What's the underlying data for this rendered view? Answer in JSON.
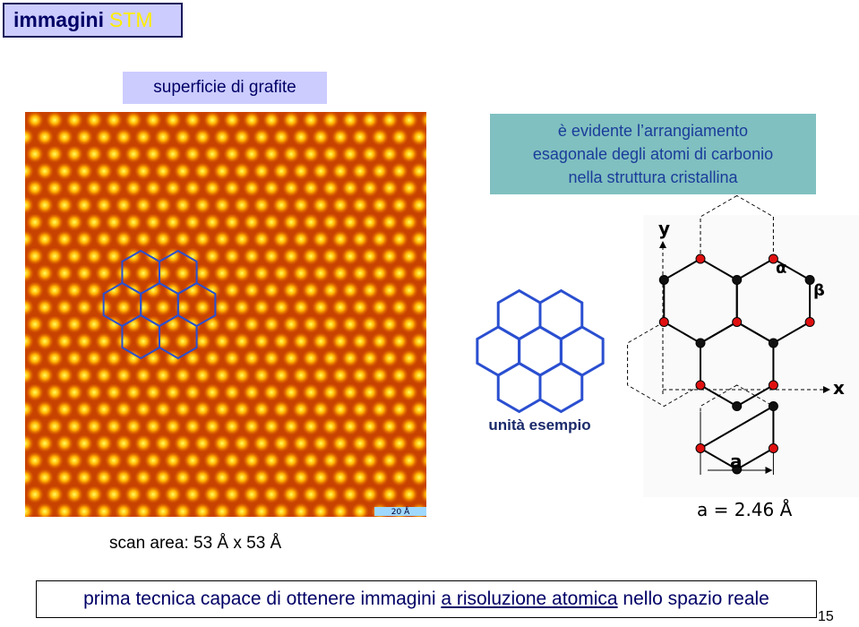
{
  "header": {
    "title": "immagini",
    "title_accent": "STM"
  },
  "image_label": "superficie di grafite",
  "note": {
    "lines": [
      "è evidente l’arrangiamento",
      "esagonale degli atomi di carbonio",
      "nella struttura cristallina"
    ]
  },
  "scale_bar": "20 Å",
  "scan_area": "scan area: 53 Å x 53 Å",
  "example_label": "unità esempio",
  "lattice": {
    "y_label": "y",
    "x_label": "x",
    "alpha_label": "α",
    "beta_label": "β",
    "a_label": "a",
    "caption": "a = 2.46 Å"
  },
  "footer": {
    "text_before": "prima tecnica capace di ottenere immagini ",
    "text_underlined": "a risoluzione atomica",
    "text_after": " nello spazio reale"
  },
  "page_number": "15"
}
